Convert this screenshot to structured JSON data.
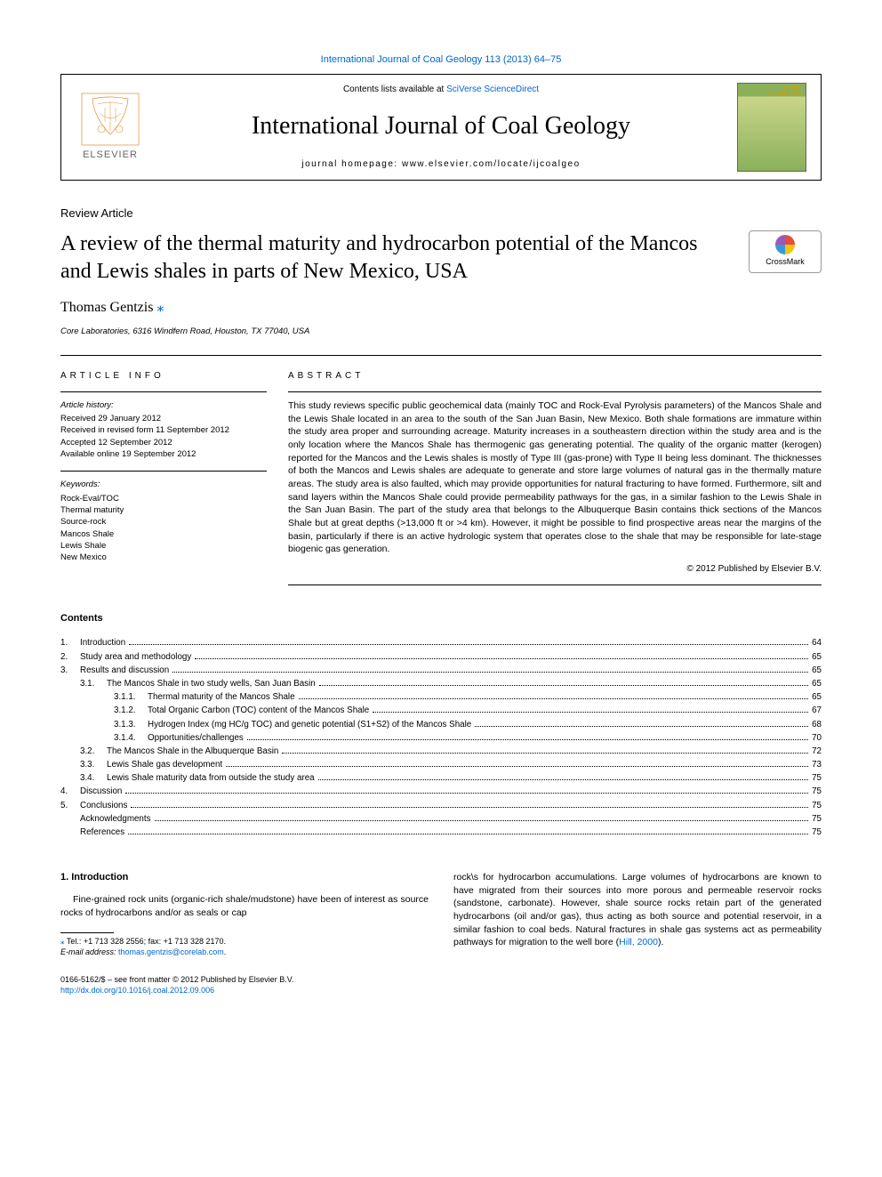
{
  "topLink": "International Journal of Coal Geology 113 (2013) 64–75",
  "header": {
    "contentsPrefix": "Contents lists available at ",
    "contentsLink": "SciVerse ScienceDirect",
    "journalName": "International Journal of Coal Geology",
    "homepagePrefix": "journal homepage: ",
    "homepageUrl": "www.elsevier.com/locate/ijcoalgeo",
    "coverLine1": "COAL",
    "coverLine2": "GEOLOGY"
  },
  "articleType": "Review Article",
  "title": "A review of the thermal maturity and hydrocarbon potential of the Mancos and Lewis shales in parts of New Mexico, USA",
  "crossmark": "CrossMark",
  "author": "Thomas Gentzis",
  "starGlyph": "⁎",
  "affiliation": "Core Laboratories, 6316 Windfern Road, Houston, TX 77040, USA",
  "info": {
    "heading": "article info",
    "historyHead": "Article history:",
    "history": [
      "Received 29 January 2012",
      "Received in revised form 11 September 2012",
      "Accepted 12 September 2012",
      "Available online 19 September 2012"
    ],
    "keywordsHead": "Keywords:",
    "keywords": [
      "Rock-Eval/TOC",
      "Thermal maturity",
      "Source-rock",
      "Mancos Shale",
      "Lewis Shale",
      "New Mexico"
    ]
  },
  "abstract": {
    "heading": "abstract",
    "body": "This study reviews specific public geochemical data (mainly TOC and Rock-Eval Pyrolysis parameters) of the Mancos Shale and the Lewis Shale located in an area to the south of the San Juan Basin, New Mexico. Both shale formations are immature within the study area proper and surrounding acreage. Maturity increases in a southeastern direction within the study area and is the only location where the Mancos Shale has thermogenic gas generating potential. The quality of the organic matter (kerogen) reported for the Mancos and the Lewis shales is mostly of Type III (gas-prone) with Type II being less dominant. The thicknesses of both the Mancos and Lewis shales are adequate to generate and store large volumes of natural gas in the thermally mature areas. The study area is also faulted, which may provide opportunities for natural fracturing to have formed. Furthermore, silt and sand layers within the Mancos Shale could provide permeability pathways for the gas, in a similar fashion to the Lewis Shale in the San Juan Basin. The part of the study area that belongs to the Albuquerque Basin contains thick sections of the Mancos Shale but at great depths (>13,000 ft or >4 km). However, it might be possible to find prospective areas near the margins of the basin, particularly if there is an active hydrologic system that operates close to the shale that may be responsible for late-stage biogenic gas generation.",
    "copyright": "© 2012 Published by Elsevier B.V."
  },
  "contentsHeading": "Contents",
  "toc": [
    {
      "n": "1.",
      "t": "Introduction",
      "p": "64",
      "i": 0
    },
    {
      "n": "2.",
      "t": "Study area and methodology",
      "p": "65",
      "i": 0
    },
    {
      "n": "3.",
      "t": "Results and discussion",
      "p": "65",
      "i": 0
    },
    {
      "n": "3.1.",
      "t": "The Mancos Shale in two study wells, San Juan Basin",
      "p": "65",
      "i": 1
    },
    {
      "n": "3.1.1.",
      "t": "Thermal maturity of the Mancos Shale",
      "p": "65",
      "i": 2
    },
    {
      "n": "3.1.2.",
      "t": "Total Organic Carbon (TOC) content of the Mancos Shale",
      "p": "67",
      "i": 2
    },
    {
      "n": "3.1.3.",
      "t": "Hydrogen Index (mg HC/g TOC) and genetic potential (S1+S2) of the Mancos Shale",
      "p": "68",
      "i": 2
    },
    {
      "n": "3.1.4.",
      "t": "Opportunities/challenges",
      "p": "70",
      "i": 2
    },
    {
      "n": "3.2.",
      "t": "The Mancos Shale in the Albuquerque Basin",
      "p": "72",
      "i": 1
    },
    {
      "n": "3.3.",
      "t": "Lewis Shale gas development",
      "p": "73",
      "i": 1
    },
    {
      "n": "3.4.",
      "t": "Lewis Shale maturity data from outside the study area",
      "p": "75",
      "i": 1
    },
    {
      "n": "4.",
      "t": "Discussion",
      "p": "75",
      "i": 0
    },
    {
      "n": "5.",
      "t": "Conclusions",
      "p": "75",
      "i": 0
    },
    {
      "n": "",
      "t": "Acknowledgments",
      "p": "75",
      "i": 0
    },
    {
      "n": "",
      "t": "References",
      "p": "75",
      "i": 0
    }
  ],
  "intro": {
    "heading": "1. Introduction",
    "para1": "Fine-grained rock units (organic-rich shale/mudstone) have been of interest as source rocks of hydrocarbons and/or as seals or cap",
    "para2a": "rock\\s for hydrocarbon accumulations. Large volumes of hydrocarbons are known to have migrated from their sources into more porous and permeable reservoir rocks (sandstone, carbonate). However, shale source rocks retain part of the generated hydrocarbons (oil and/or gas), thus acting as both source and potential reservoir, in a similar fashion to coal beds. Natural fractures in shale gas systems act as permeability pathways for migration to the well bore (",
    "para2ref": "Hill, 2000",
    "para2b": ")."
  },
  "footnote": {
    "star": "⁎",
    "tel": " Tel.: +1 713 328 2556; fax: +1 713 328 2170.",
    "emailLabel": "E-mail address: ",
    "email": "thomas.gentzis@corelab.com",
    "emailSuffix": "."
  },
  "bottom": {
    "line1": "0166-5162/$ – see front matter © 2012 Published by Elsevier B.V.",
    "doi": "http://dx.doi.org/10.1016/j.coal.2012.09.006"
  },
  "colors": {
    "link": "#0066cc",
    "elsevierOrange": "#e38b2c",
    "elsevierText": "#666666"
  }
}
